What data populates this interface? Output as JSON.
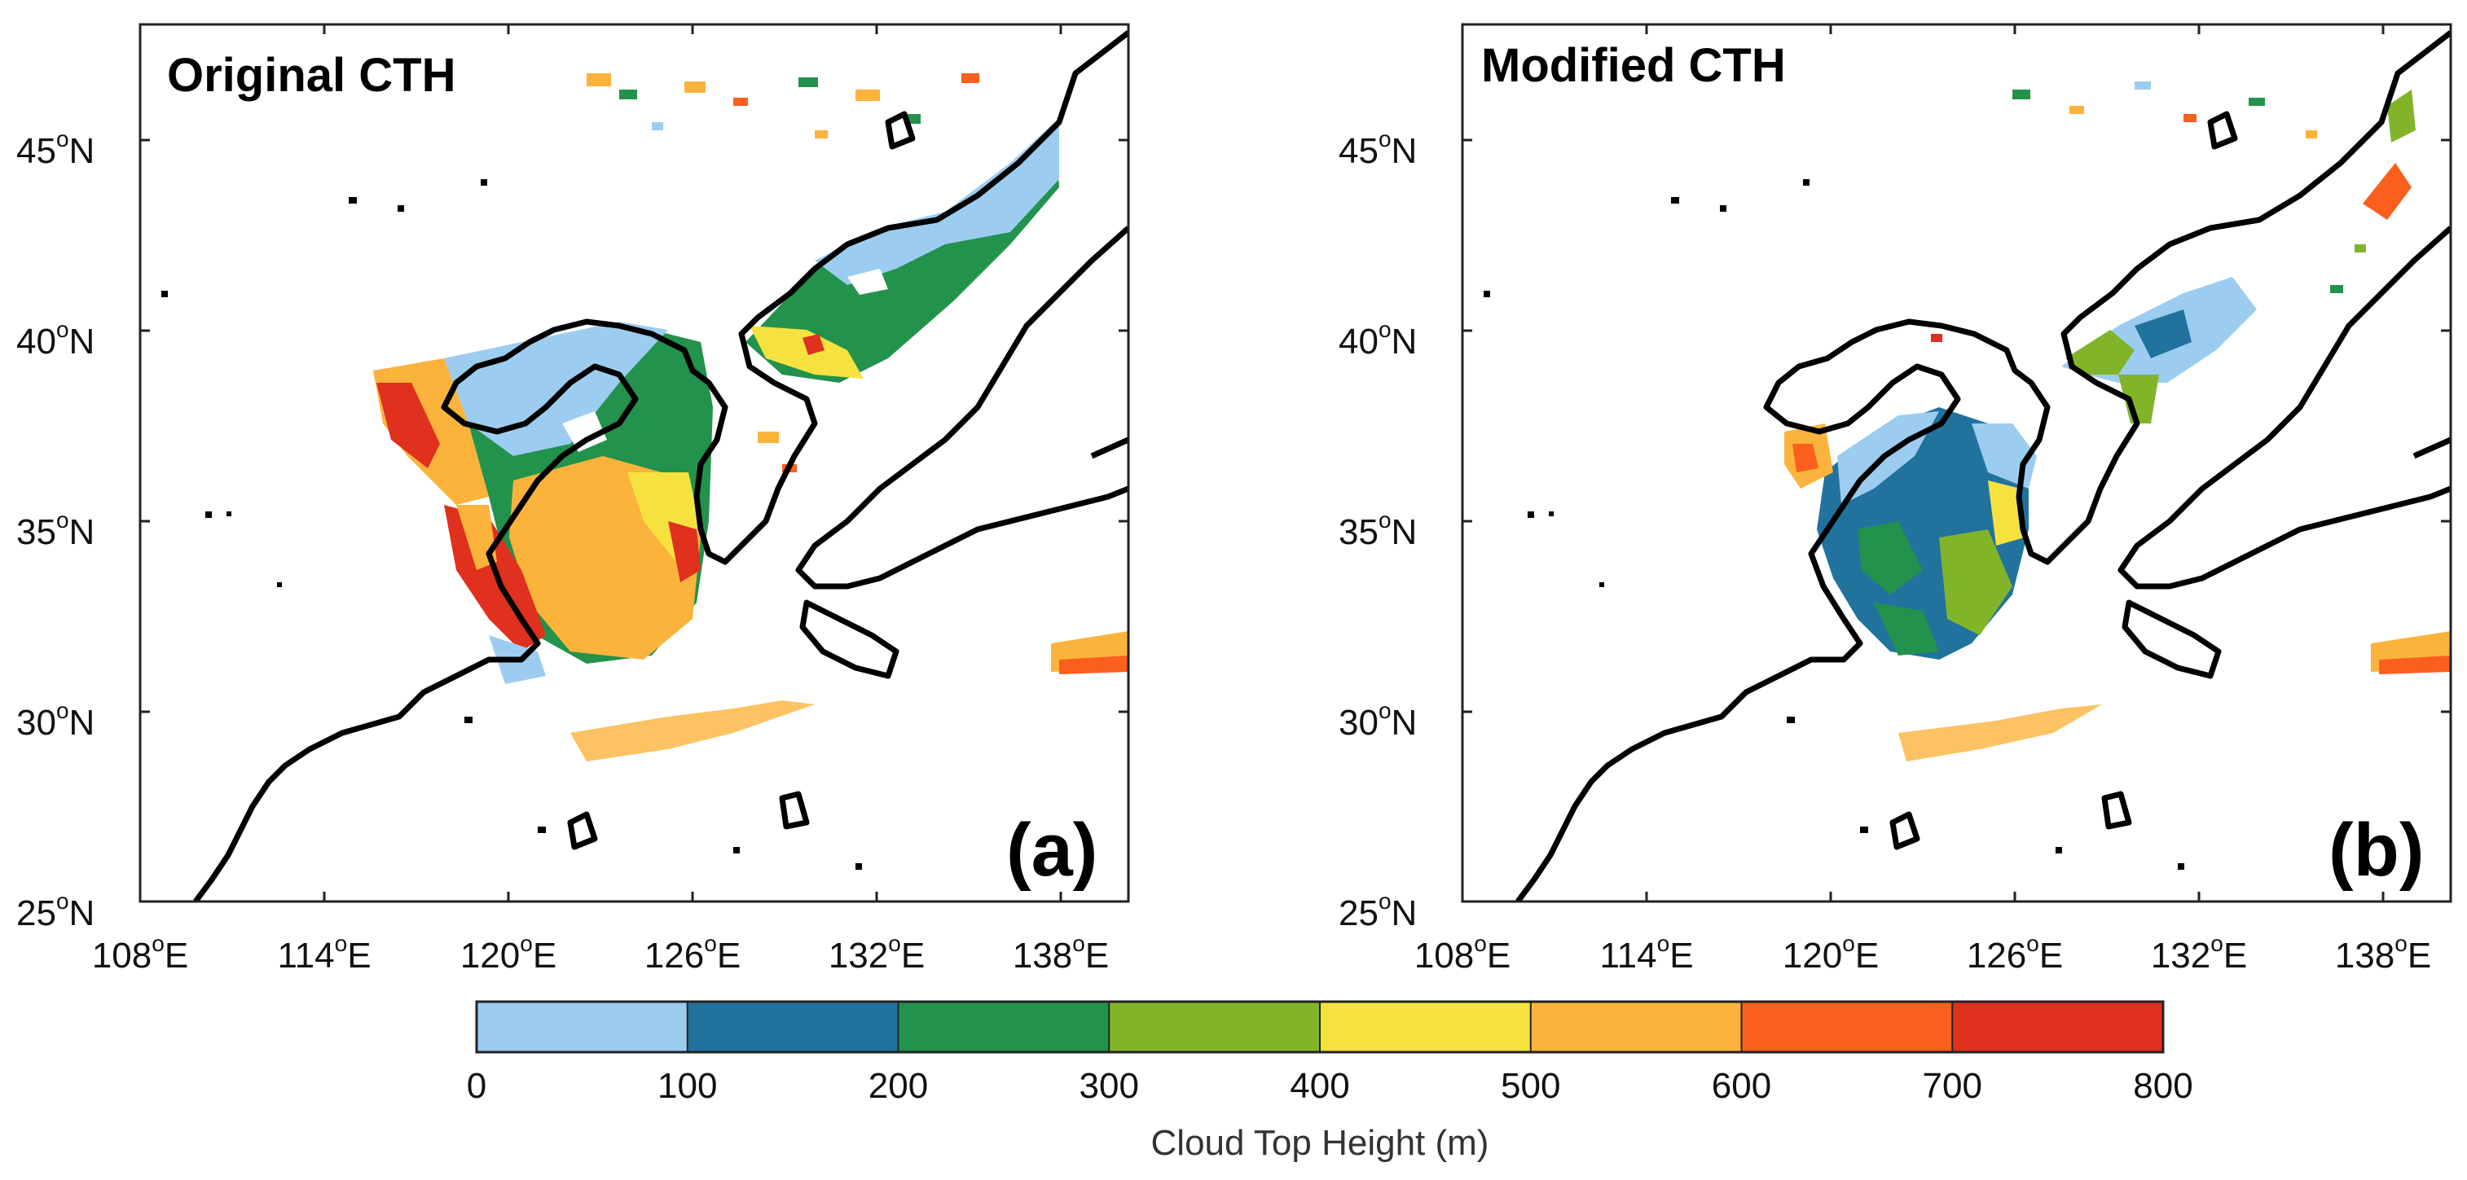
{
  "panels": [
    {
      "id": "a",
      "title": "Original CTH",
      "label": "(a)",
      "lat_ticks": [
        {
          "deg": "25",
          "dir": "N"
        },
        {
          "deg": "30",
          "dir": "N"
        },
        {
          "deg": "35",
          "dir": "N"
        },
        {
          "deg": "40",
          "dir": "N"
        },
        {
          "deg": "45",
          "dir": "N"
        }
      ],
      "lon_ticks": [
        {
          "deg": "108",
          "dir": "E"
        },
        {
          "deg": "114",
          "dir": "E"
        },
        {
          "deg": "120",
          "dir": "E"
        },
        {
          "deg": "126",
          "dir": "E"
        },
        {
          "deg": "132",
          "dir": "E"
        },
        {
          "deg": "138",
          "dir": "E"
        }
      ]
    },
    {
      "id": "b",
      "title": "Modified CTH",
      "label": "(b)",
      "lat_ticks": [
        {
          "deg": "25",
          "dir": "N"
        },
        {
          "deg": "30",
          "dir": "N"
        },
        {
          "deg": "35",
          "dir": "N"
        },
        {
          "deg": "40",
          "dir": "N"
        },
        {
          "deg": "45",
          "dir": "N"
        }
      ],
      "lon_ticks": [
        {
          "deg": "108",
          "dir": "E"
        },
        {
          "deg": "114",
          "dir": "E"
        },
        {
          "deg": "120",
          "dir": "E"
        },
        {
          "deg": "126",
          "dir": "E"
        },
        {
          "deg": "132",
          "dir": "E"
        },
        {
          "deg": "138",
          "dir": "E"
        }
      ]
    }
  ],
  "degree_symbol": "o",
  "colorbar": {
    "label": "Cloud Top Height (m)",
    "ticks": [
      "0",
      "100",
      "200",
      "300",
      "400",
      "500",
      "600",
      "700",
      "800"
    ],
    "colors": [
      "#9ccdf0",
      "#22729e",
      "#22924c",
      "#82b42a",
      "#f6e23e",
      "#fbb33c",
      "#fb5f1e",
      "#e0301e"
    ]
  }
}
